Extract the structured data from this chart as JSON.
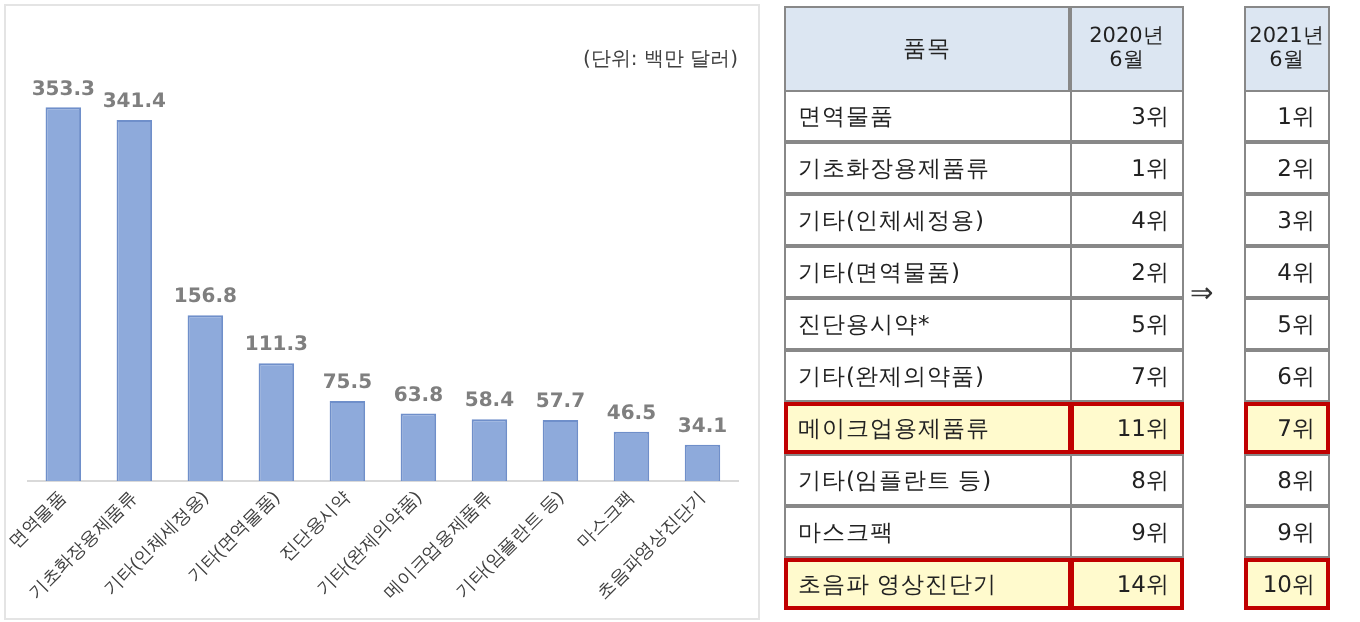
{
  "chart_data": [
    {
      "type": "bar",
      "categories": [
        "면역물품",
        "기초화장용제품류",
        "기타(인체세정용)",
        "기타(면역물품)",
        "진단용시약",
        "기타(완제의약품)",
        "메이크업용제품류",
        "기타(임플란트 등)",
        "마스크팩",
        "초음파영상진단기"
      ],
      "values": [
        353.3,
        341.4,
        156.8,
        111.3,
        75.5,
        63.8,
        58.4,
        57.7,
        46.5,
        34.1
      ],
      "color": "#8eaadb",
      "data_labels": true,
      "tick_labels": "x",
      "grid": false,
      "legend": false,
      "annotations": [
        "(단위: 백만 달러)"
      ]
    },
    {
      "type": "other",
      "categories": [
        "면역물품",
        "기초화장용제품류",
        "기타(인체세정용)",
        "기타(면역물품)",
        "진단용시약*",
        "기타(완제의약품)",
        "메이크업용제품류",
        "기타(임플란트 등)",
        "마스크팩",
        "초음파 영상진단기"
      ],
      "series": [
        {
          "name": "2020년 6월",
          "values": [
            3,
            1,
            4,
            2,
            5,
            7,
            11,
            8,
            9,
            14
          ],
          "colors": [
            "#ffffff",
            "#ffffff",
            "#ffffff",
            "#ffffff",
            "#ffffff",
            "#ffffff",
            "#fffacd",
            "#ffffff",
            "#ffffff",
            "#fffacd"
          ],
          "value_labels": [
            "3위",
            "1위",
            "4위",
            "2위",
            "5위",
            "7위",
            "11위",
            "8위",
            "9위",
            "14위"
          ]
        },
        {
          "name": "2021년 6월",
          "values": [
            1,
            2,
            3,
            4,
            5,
            6,
            7,
            8,
            9,
            10
          ],
          "colors": [
            "#ffffff",
            "#ffffff",
            "#ffffff",
            "#ffffff",
            "#ffffff",
            "#ffffff",
            "#fffacd",
            "#ffffff",
            "#ffffff",
            "#fffacd"
          ],
          "value_labels": [
            "1위",
            "2위",
            "3위",
            "4위",
            "5위",
            "6위",
            "7위",
            "8위",
            "9위",
            "10위"
          ]
        }
      ],
      "colors": [
        "#ffffff",
        "#ffffff",
        "#ffffff",
        "#ffffff",
        "#ffffff",
        "#ffffff",
        "#fffacd",
        "#ffffff",
        "#ffffff",
        "#fffacd"
      ],
      "annotations": [
        "품목",
        "⇒"
      ]
    }
  ]
}
